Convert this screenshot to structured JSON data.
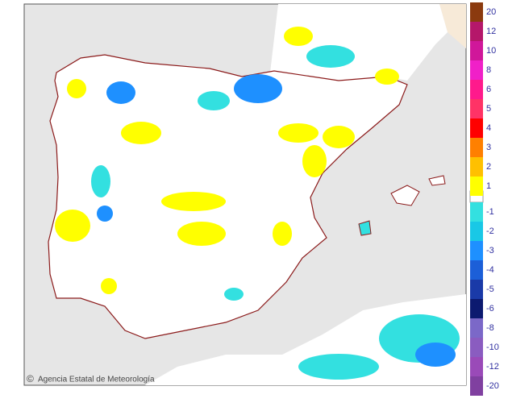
{
  "map": {
    "credit": "Agencia Estatal de Meteorología",
    "logo": "aemet",
    "legend_upper": [
      {
        "label": "20",
        "color": "#8b3a0f"
      },
      {
        "label": "12",
        "color": "#b5176a"
      },
      {
        "label": "10",
        "color": "#d0179a"
      },
      {
        "label": "8",
        "color": "#f020c8"
      },
      {
        "label": "6",
        "color": "#ff1a8c"
      },
      {
        "label": "5",
        "color": "#ff3366"
      },
      {
        "label": "4",
        "color": "#ff0000"
      },
      {
        "label": "3",
        "color": "#ff8000"
      },
      {
        "label": "2",
        "color": "#ffc000"
      },
      {
        "label": "1",
        "color": "#ffff00"
      }
    ],
    "legend_lower": [
      {
        "label": "-1",
        "color": "#33e0e0"
      },
      {
        "label": "-2",
        "color": "#19c8e6"
      },
      {
        "label": "-3",
        "color": "#1e90ff"
      },
      {
        "label": "-4",
        "color": "#1c5fd8"
      },
      {
        "label": "-5",
        "color": "#1a3aa8"
      },
      {
        "label": "-6",
        "color": "#0c1a70"
      },
      {
        "label": "-8",
        "color": "#7b68c8"
      },
      {
        "label": "-10",
        "color": "#8a5cc0"
      },
      {
        "label": "-12",
        "color": "#9a4ab8"
      },
      {
        "label": "-20",
        "color": "#8040a0"
      }
    ]
  }
}
